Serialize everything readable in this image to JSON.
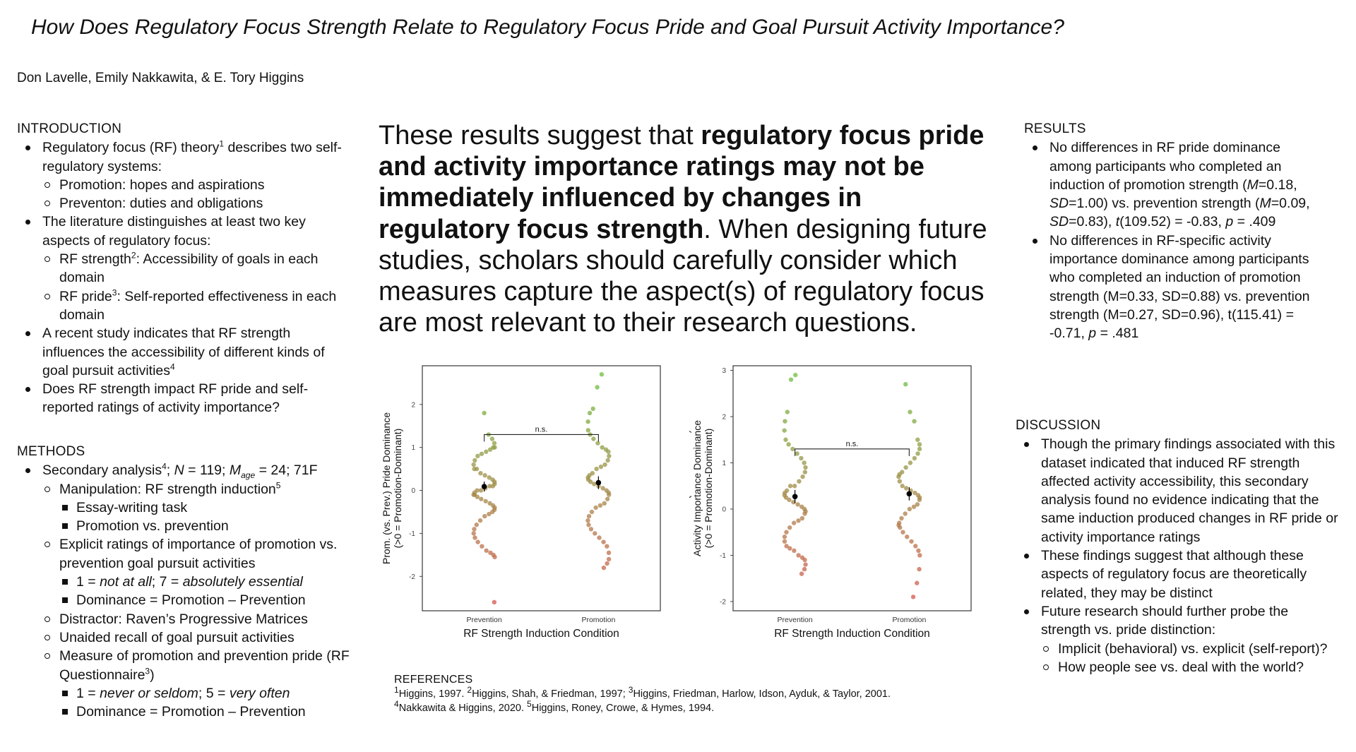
{
  "title": "How Does Regulatory Focus Strength Relate to Regulatory Focus Pride and Goal Pursuit Activity Importance?",
  "authors": "Don Lavelle, Emily Nakkawita, & E. Tory Higgins",
  "introduction": {
    "heading": "INTRODUCTION",
    "b1": "Regulatory focus (RF) theory",
    "b1_sup": "1",
    "b1_rest": " describes two self-regulatory systems:",
    "b1_s1": "Promotion: hopes and aspirations",
    "b1_s2": "Preventon: duties and obligations",
    "b2": "The literature distinguishes at least two key aspects of regulatory focus:",
    "b2_s1a": "RF strength",
    "b2_s1_sup": "2",
    "b2_s1b": ": Accessibility of goals in each domain",
    "b2_s2a": "RF pride",
    "b2_s2_sup": "3",
    "b2_s2b": ": Self-reported effectiveness in each domain",
    "b3": "A recent study indicates that RF strength influences the accessibility of different kinds of goal pursuit activities",
    "b3_sup": "4",
    "b4": "Does RF strength impact RF pride and self-reported ratings of activity importance?"
  },
  "methods": {
    "heading": "METHODS",
    "b1a": "Secondary analysis",
    "b1_sup": "4",
    "b1b": "; ",
    "b1_n": "N",
    "b1c": " = 119; ",
    "b1_m": "M",
    "b1_sub": "age",
    "b1d": " = 24; 71F",
    "s1a": "Manipulation: RF strength induction",
    "s1_sup": "5",
    "s1_t1": "Essay-writing task",
    "s1_t2": "Promotion vs. prevention",
    "s2": "Explicit ratings of importance of promotion vs. prevention goal pursuit activities",
    "s2_t1a": "1 = ",
    "s2_t1b": "not at all",
    "s2_t1c": "; 7 = ",
    "s2_t1d": "absolutely essential",
    "s2_t2": "Dominance = Promotion – Prevention",
    "s3": "Distractor: Raven’s Progressive Matrices",
    "s4": "Unaided recall of goal pursuit activities",
    "s5a": "Measure of promotion and prevention pride (RF Questionnaire",
    "s5_sup": "3",
    "s5b": ")",
    "s5_t1a": "1 = ",
    "s5_t1b": "never or seldom",
    "s5_t1c": "; 5 = ",
    "s5_t1d": "very often",
    "s5_t2": "Dominance = Promotion – Prevention"
  },
  "main_message": {
    "p1": "These results suggest that ",
    "bold": "regulatory focus pride and activity importance ratings may not be immediately influenced by changes in regulatory focus strength",
    "p2": ". When designing future studies, scholars should carefully consider which measures capture the aspect(s) of regulatory focus are most relevant to their research questions."
  },
  "results": {
    "heading": "RESULTS",
    "b1a": "No differences in RF pride dominance among participants who completed an induction of promotion strength (",
    "b1_M1": "M",
    "b1b": "=0.18, ",
    "b1_SD1": "SD",
    "b1c": "=1.00) vs. prevention strength (",
    "b1_M2": "M",
    "b1d": "=0.09, ",
    "b1_SD2": "SD",
    "b1e": "=0.83), ",
    "b1_t": "t",
    "b1f": "(109.52) = -0.83, ",
    "b1_p": "p",
    "b1g": " = .409",
    "b2a": "No differences in RF-specific activity importance dominance among participants who completed an induction of promotion strength (M=0.33, SD=0.88) vs. prevention strength (M=0.27, SD=0.96), t(115.41) = -0.71, ",
    "b2_p": "p",
    "b2b": " = .481"
  },
  "discussion": {
    "heading": "DISCUSSION",
    "b1": "Though the primary findings associated with this dataset indicated that induced RF strength affected activity accessibility, this secondary analysis found no evidence indicating that the same induction produced changes in RF pride or activity importance ratings",
    "b2": "These findings suggest that although these aspects of regulatory focus are theoretically related, they may be distinct",
    "b3": "Future research should further probe the strength vs. pride distinction:",
    "b3_s1": "Implicit (behavioral) vs. explicit (self-report)?",
    "b3_s2": "How people see vs. deal with the world?"
  },
  "references": {
    "heading": "REFERENCES",
    "r1_sup": "1",
    "r1": "Higgins, 1997. ",
    "r2_sup": "2",
    "r2": "Higgins, Shah, & Friedman, 1997; ",
    "r3_sup": "3",
    "r3": "Higgins, Friedman, Harlow, Idson, Ayduk, & Taylor, 2001.",
    "r4_sup": "4",
    "r4": "Nakkawita & Higgins, 2020. ",
    "r5_sup": "5",
    "r5": "Higgins, Roney, Crowe, & Hymes, 1994."
  },
  "colors": {
    "promotion_green": "#6fbd3f",
    "prevention_red": "#d9534f",
    "axis": "#444444"
  },
  "chart_data": [
    {
      "type": "scatter",
      "title": "",
      "xlabel": "RF Strength Induction Condition",
      "ylabel_lines": [
        "Prom. (vs. Prev.) Pride Dominance",
        "(>0 = Promotion-Dominant)"
      ],
      "categories": [
        "Prevention",
        "Promotion"
      ],
      "ylim": [
        -2.8,
        2.9
      ],
      "yticks": [
        -2,
        -1,
        0,
        1,
        2
      ],
      "annotation": "n.s.",
      "means": [
        0.09,
        0.18
      ],
      "sd": [
        0.83,
        1.0
      ],
      "series": [
        {
          "category": "Prevention",
          "values": [
            1.8,
            1.3,
            1.2,
            1.1,
            1.0,
            1.0,
            0.95,
            0.9,
            0.85,
            0.8,
            0.7,
            0.6,
            0.5,
            0.5,
            0.4,
            0.35,
            0.3,
            0.25,
            0.2,
            0.15,
            0.1,
            0.1,
            0.05,
            0.0,
            0.0,
            -0.05,
            -0.1,
            -0.1,
            -0.15,
            -0.2,
            -0.25,
            -0.3,
            -0.35,
            -0.4,
            -0.45,
            -0.5,
            -0.55,
            -0.6,
            -0.7,
            -0.8,
            -0.9,
            -1.0,
            -1.1,
            -1.2,
            -1.3,
            -1.4,
            -1.45,
            -1.5,
            -1.55,
            -2.6
          ]
        },
        {
          "category": "Promotion",
          "values": [
            2.7,
            2.4,
            1.9,
            1.8,
            1.6,
            1.4,
            1.3,
            1.2,
            1.1,
            1.0,
            0.95,
            0.9,
            0.8,
            0.7,
            0.6,
            0.55,
            0.5,
            0.4,
            0.35,
            0.3,
            0.25,
            0.2,
            0.15,
            0.1,
            0.05,
            0.0,
            -0.05,
            -0.1,
            -0.2,
            -0.3,
            -0.35,
            -0.4,
            -0.5,
            -0.6,
            -0.7,
            -0.8,
            -0.9,
            -1.0,
            -1.1,
            -1.2,
            -1.3,
            -1.45,
            -1.6,
            -1.7,
            -1.8
          ]
        }
      ]
    },
    {
      "type": "scatter",
      "title": "",
      "xlabel": "RF Strength Induction Condition",
      "ylabel_lines": [
        "Promotion (vs. Prevention)",
        "Activity Importance Dominance",
        "(>0 = Promotion-Dominant)"
      ],
      "categories": [
        "Prevention",
        "Promotion"
      ],
      "ylim": [
        -2.2,
        3.1
      ],
      "yticks": [
        -2,
        -1,
        0,
        1,
        2,
        3
      ],
      "annotation": "n.s.",
      "means": [
        0.27,
        0.33
      ],
      "sd": [
        0.96,
        0.88
      ],
      "series": [
        {
          "category": "Prevention",
          "values": [
            2.9,
            2.8,
            2.1,
            1.9,
            1.7,
            1.5,
            1.4,
            1.3,
            1.2,
            1.1,
            1.0,
            0.9,
            0.8,
            0.7,
            0.6,
            0.5,
            0.5,
            0.4,
            0.35,
            0.3,
            0.25,
            0.2,
            0.15,
            0.1,
            0.05,
            0.0,
            -0.05,
            -0.1,
            -0.2,
            -0.25,
            -0.3,
            -0.4,
            -0.5,
            -0.6,
            -0.7,
            -0.8,
            -0.85,
            -0.9,
            -1.0,
            -1.05,
            -1.1,
            -1.2,
            -1.3,
            -1.4
          ]
        },
        {
          "category": "Promotion",
          "values": [
            2.7,
            2.1,
            1.9,
            1.5,
            1.4,
            1.3,
            1.2,
            1.1,
            1.0,
            0.9,
            0.8,
            0.75,
            0.7,
            0.6,
            0.5,
            0.45,
            0.4,
            0.35,
            0.3,
            0.25,
            0.2,
            0.1,
            0.05,
            0.0,
            -0.1,
            -0.2,
            -0.3,
            -0.35,
            -0.4,
            -0.5,
            -0.6,
            -0.7,
            -0.8,
            -0.9,
            -1.0,
            -1.3,
            -1.6,
            -1.9
          ]
        }
      ]
    }
  ]
}
